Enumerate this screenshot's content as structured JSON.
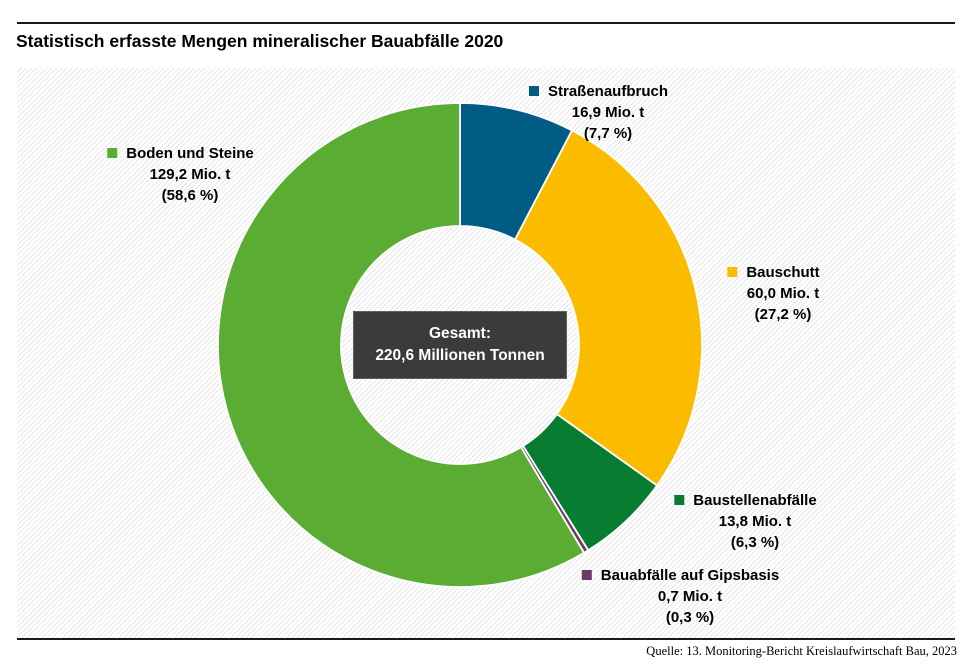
{
  "title": "Statistisch erfasste Mengen mineralischer Bauabfälle 2020",
  "source": "Quelle: 13. Monitoring-Bericht Kreislaufwirtschaft Bau, 2023",
  "chart_data": {
    "type": "pie",
    "subtype": "donut",
    "title": "Statistisch erfasste Mengen mineralischer Bauabfälle 2020",
    "units": "Mio. t",
    "total_value": 220.6,
    "direction": "clockwise",
    "start_angle_deg": 0,
    "inner_radius_ratio": 0.49,
    "center_label": {
      "line1": "Gesamt:",
      "line2": "220,6 Millionen Tonnen"
    },
    "slices": [
      {
        "label": "Straßenaufbruch",
        "value": 16.9,
        "percent": 7.7,
        "amount_label": "16,9 Mio. t",
        "percent_label": "(7,7 %)",
        "color": "#005c85"
      },
      {
        "label": "Bauschutt",
        "value": 60.0,
        "percent": 27.2,
        "amount_label": "60,0 Mio. t",
        "percent_label": "(27,2 %)",
        "color": "#fbbc00"
      },
      {
        "label": "Baustellenabfälle",
        "value": 13.8,
        "percent": 6.3,
        "amount_label": "13,8 Mio. t",
        "percent_label": "(6,3 %)",
        "color": "#087d32"
      },
      {
        "label": "Bauabfälle auf Gipsbasis",
        "value": 0.7,
        "percent": 0.3,
        "amount_label": "0,7 Mio. t",
        "percent_label": "(0,3 %)",
        "color": "#6b3a69"
      },
      {
        "label": "Boden und Steine",
        "value": 129.2,
        "percent": 58.6,
        "amount_label": "129,2 Mio. t",
        "percent_label": "(58,6 %)",
        "color": "#5bac33"
      }
    ]
  }
}
